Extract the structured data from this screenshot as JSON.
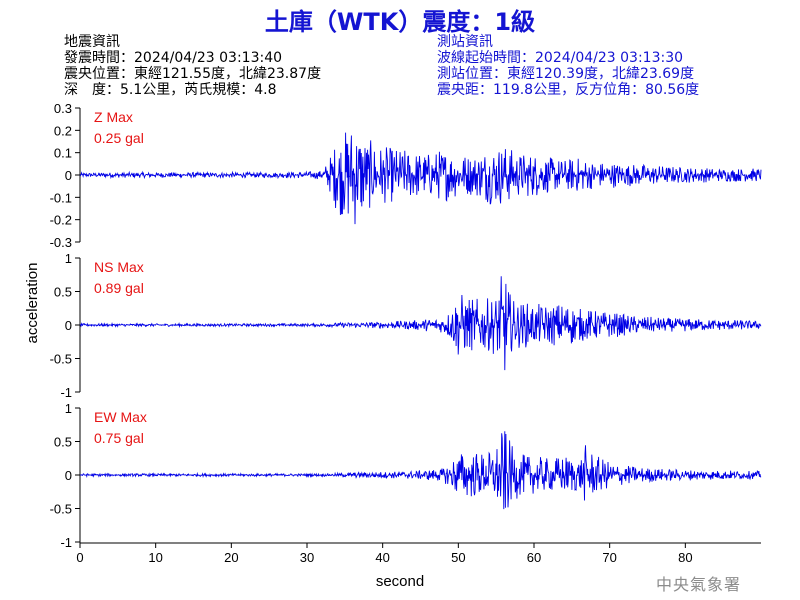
{
  "header": {
    "title": "土庫（WTK）震度：1級"
  },
  "quake_info": {
    "heading": "地震資訊",
    "origin_time": "發震時間：2024/04/23 03:13:40",
    "epicenter": "震央位置：東經121.55度，北緯23.87度",
    "depth_magnitude": "深　度：5.1公里，芮氏規模：4.8"
  },
  "station_info": {
    "heading": "測站資訊",
    "wave_start": "波線起始時間：2024/04/23 03:13:30",
    "location": "測站位置：東經120.39度，北緯23.69度",
    "distance_azimuth": "震央距：119.8公里，反方位角：80.56度"
  },
  "agency": "中央氣象署",
  "colors": {
    "title": "#1414d2",
    "trace": "#0000e6",
    "max_label": "#e61414",
    "station_text": "#1414d2",
    "agency": "#8c8c8c"
  },
  "chart_data": {
    "type": "line",
    "xlabel": "second",
    "ylabel": "acceleration",
    "xlim": [
      0,
      90
    ],
    "x_ticks": [
      0,
      10,
      20,
      30,
      40,
      50,
      60,
      70,
      80
    ],
    "grid": false,
    "series": [
      {
        "name": "Z",
        "max_label": "Z Max",
        "max_value": "0.25 gal",
        "ylim": [
          -0.3,
          0.3
        ],
        "y_ticks": [
          -0.3,
          -0.2,
          -0.1,
          0,
          0.1,
          0.2,
          0.3
        ],
        "tick_labels": [
          "-0.3",
          "-0.2",
          "-0.1",
          "0",
          "0.1",
          "0.2",
          "0.3"
        ],
        "x": [
          0,
          5,
          10,
          15,
          20,
          25,
          30,
          32,
          33,
          34,
          35,
          36,
          37,
          38,
          39,
          40,
          42,
          44,
          46,
          48,
          50,
          52,
          54,
          56,
          58,
          60,
          62,
          64,
          66,
          68,
          70,
          72,
          74,
          76,
          78,
          80,
          82,
          84,
          86,
          88,
          90
        ],
        "y": [
          0.01,
          0.012,
          0.012,
          0.012,
          0.012,
          0.012,
          0.015,
          0.02,
          0.08,
          0.17,
          0.2,
          0.25,
          0.22,
          0.16,
          0.15,
          0.13,
          0.12,
          0.11,
          0.1,
          0.12,
          0.1,
          0.09,
          0.13,
          0.14,
          0.1,
          0.1,
          0.08,
          0.07,
          0.08,
          0.06,
          0.06,
          0.05,
          0.05,
          0.045,
          0.04,
          0.035,
          0.035,
          0.03,
          0.03,
          0.03,
          0.03
        ]
      },
      {
        "name": "NS",
        "max_label": "NS Max",
        "max_value": "0.89 gal",
        "ylim": [
          -1,
          1
        ],
        "y_ticks": [
          -1,
          -0.5,
          0,
          0.5,
          1
        ],
        "tick_labels": [
          "-1",
          "-0.5",
          "0",
          "0.5",
          "1"
        ],
        "x": [
          0,
          5,
          10,
          15,
          20,
          25,
          30,
          33,
          36,
          40,
          44,
          48,
          49,
          50,
          51,
          52,
          54,
          55,
          56,
          57,
          58,
          60,
          62,
          64,
          66,
          68,
          70,
          72,
          74,
          76,
          78,
          80,
          82,
          84,
          86,
          88,
          90
        ],
        "y": [
          0.02,
          0.02,
          0.02,
          0.02,
          0.02,
          0.02,
          0.02,
          0.03,
          0.04,
          0.05,
          0.07,
          0.12,
          0.25,
          0.5,
          0.45,
          0.4,
          0.4,
          0.45,
          0.89,
          0.4,
          0.35,
          0.32,
          0.3,
          0.35,
          0.25,
          0.22,
          0.2,
          0.16,
          0.13,
          0.12,
          0.1,
          0.1,
          0.09,
          0.08,
          0.08,
          0.07,
          0.06
        ]
      },
      {
        "name": "EW",
        "max_label": "EW Max",
        "max_value": "0.75 gal",
        "ylim": [
          -1,
          1
        ],
        "y_ticks": [
          -1,
          -0.5,
          0,
          0.5,
          1
        ],
        "tick_labels": [
          "-1",
          "-0.5",
          "0",
          "0.5",
          "1"
        ],
        "x": [
          0,
          5,
          10,
          15,
          20,
          25,
          30,
          33,
          36,
          40,
          44,
          48,
          49,
          50,
          52,
          54,
          55,
          56,
          57,
          58,
          60,
          62,
          64,
          66,
          67,
          68,
          70,
          72,
          74,
          76,
          78,
          80,
          82,
          84,
          86,
          88,
          90
        ],
        "y": [
          0.02,
          0.02,
          0.02,
          0.02,
          0.02,
          0.02,
          0.02,
          0.02,
          0.04,
          0.05,
          0.06,
          0.1,
          0.2,
          0.35,
          0.35,
          0.35,
          0.45,
          0.75,
          0.45,
          0.32,
          0.28,
          0.25,
          0.3,
          0.25,
          0.5,
          0.3,
          0.2,
          0.15,
          0.12,
          0.1,
          0.09,
          0.08,
          0.08,
          0.07,
          0.07,
          0.06,
          0.06
        ]
      }
    ]
  }
}
